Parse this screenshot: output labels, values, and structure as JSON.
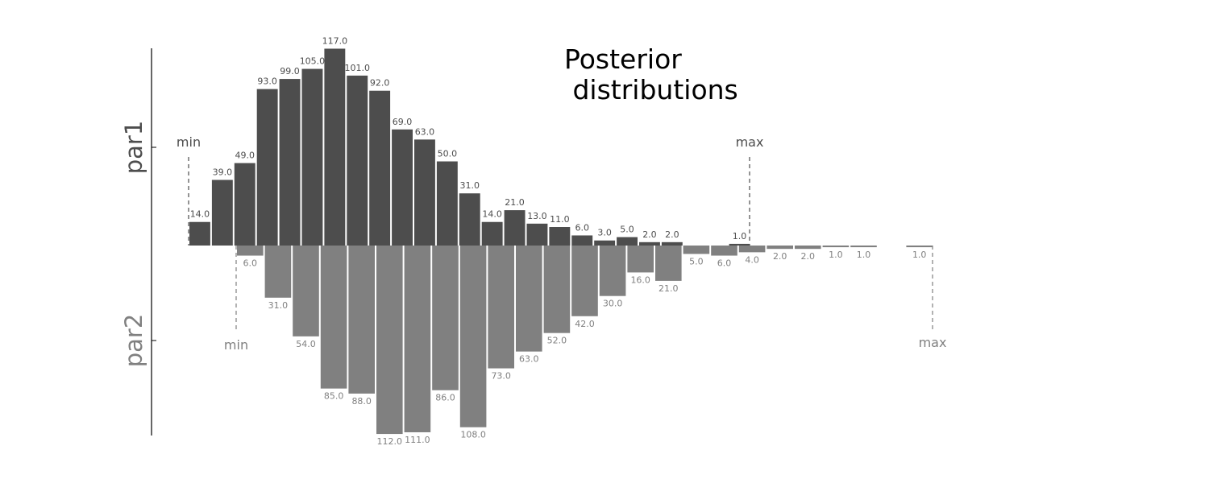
{
  "chart_data": {
    "type": "bar",
    "title": "Posterior\n distributions",
    "style": "mirrored histogram (par1 upward, par2 downward)",
    "colors": {
      "par1": "#4d4d4d",
      "par2": "#808080",
      "axis": "#000000"
    },
    "grid": false,
    "series": [
      {
        "name": "par1",
        "values": [
          14.0,
          39.0,
          49.0,
          93.0,
          99.0,
          105.0,
          117.0,
          101.0,
          92.0,
          69.0,
          63.0,
          50.0,
          31.0,
          14.0,
          21.0,
          13.0,
          11.0,
          6.0,
          3.0,
          5.0,
          2.0,
          2.0,
          0,
          0,
          1.0
        ],
        "labels": [
          "14.0",
          "39.0",
          "49.0",
          "93.0",
          "99.0",
          "105.0",
          "117.0",
          "101.0",
          "92.0",
          "69.0",
          "63.0",
          "50.0",
          "31.0",
          "14.0",
          "21.0",
          "13.0",
          "11.0",
          "6.0",
          "3.0",
          "5.0",
          "2.0",
          "2.0",
          "",
          "",
          "1.0"
        ],
        "min_label": "min",
        "max_label": "max"
      },
      {
        "name": "par2",
        "values": [
          6.0,
          31.0,
          54.0,
          85.0,
          88.0,
          112.0,
          111.0,
          86.0,
          108.0,
          73.0,
          63.0,
          52.0,
          42.0,
          30.0,
          16.0,
          21.0,
          5.0,
          6.0,
          4.0,
          2.0,
          2.0,
          1.0,
          1.0,
          0,
          1.0
        ],
        "labels": [
          "6.0",
          "31.0",
          "54.0",
          "85.0",
          "88.0",
          "112.0",
          "111.0",
          "86.0",
          "108.0",
          "73.0",
          "63.0",
          "52.0",
          "42.0",
          "30.0",
          "16.0",
          "21.0",
          "5.0",
          "6.0",
          "4.0",
          "2.0",
          "2.0",
          "1.0",
          "1.0",
          "",
          "1.0"
        ],
        "min_label": "min",
        "max_label": "max"
      }
    ]
  }
}
